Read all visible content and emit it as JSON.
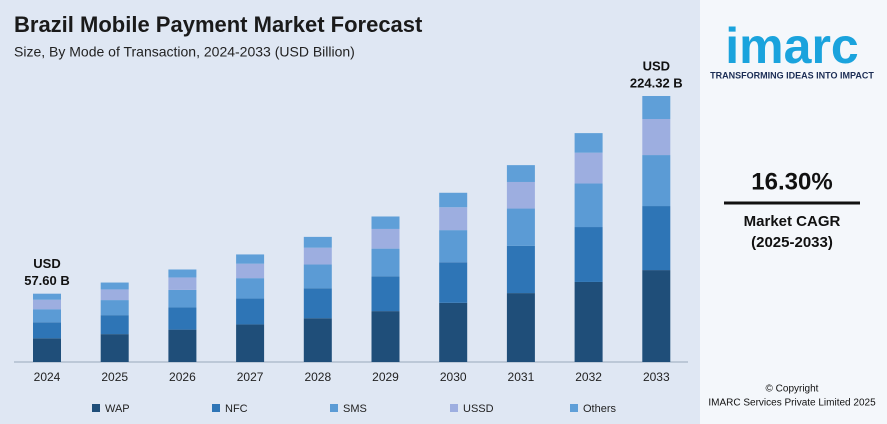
{
  "chart_data": {
    "type": "stacked_bar",
    "title": "Brazil Mobile Payment Market Forecast",
    "subtitle": "Size, By Mode of Transaction, 2024-2033 (USD Billion)",
    "categories": [
      "2024",
      "2025",
      "2026",
      "2027",
      "2028",
      "2029",
      "2030",
      "2031",
      "2032",
      "2033"
    ],
    "series": [
      {
        "name": "WAP",
        "color": "#1f4e79",
        "values": [
          20,
          23.5,
          27.3,
          31.7,
          36.9,
          42.9,
          49.9,
          58.1,
          67.5,
          77.5
        ]
      },
      {
        "name": "NFC",
        "color": "#2e75b6",
        "values": [
          13.5,
          16,
          18.7,
          21.8,
          25.3,
          29.4,
          34.2,
          39.8,
          46.3,
          54
        ]
      },
      {
        "name": "SMS",
        "color": "#5b9bd5",
        "values": [
          11,
          12.7,
          14.8,
          17.2,
          20,
          23.3,
          27.1,
          31.5,
          36.7,
          43
        ]
      },
      {
        "name": "USSD",
        "color": "#9daee0",
        "values": [
          8,
          9,
          10.5,
          12.2,
          14.2,
          16.6,
          19.3,
          22.4,
          26,
          30.4
        ]
      },
      {
        "name": "Others",
        "color": "#5f9fd8",
        "values": [
          5.1,
          5.8,
          6.7,
          7.8,
          9.1,
          10.5,
          12.2,
          14.2,
          16.5,
          19.4
        ]
      }
    ],
    "annotations": [
      {
        "lines": [
          "USD",
          "57.60 B"
        ],
        "category": 0
      },
      {
        "lines": [
          "USD",
          "224.32 B"
        ],
        "category": 9
      }
    ],
    "side_panel": {
      "logo": "imarc",
      "tagline": "TRANSFORMING IDEAS INTO IMPACT",
      "cagr_value": "16.30%",
      "cagr_label": "Market CAGR",
      "cagr_period": "(2025-2033)",
      "copyright": "© Copyright",
      "company": "IMARC Services Private Limited 2025"
    }
  }
}
